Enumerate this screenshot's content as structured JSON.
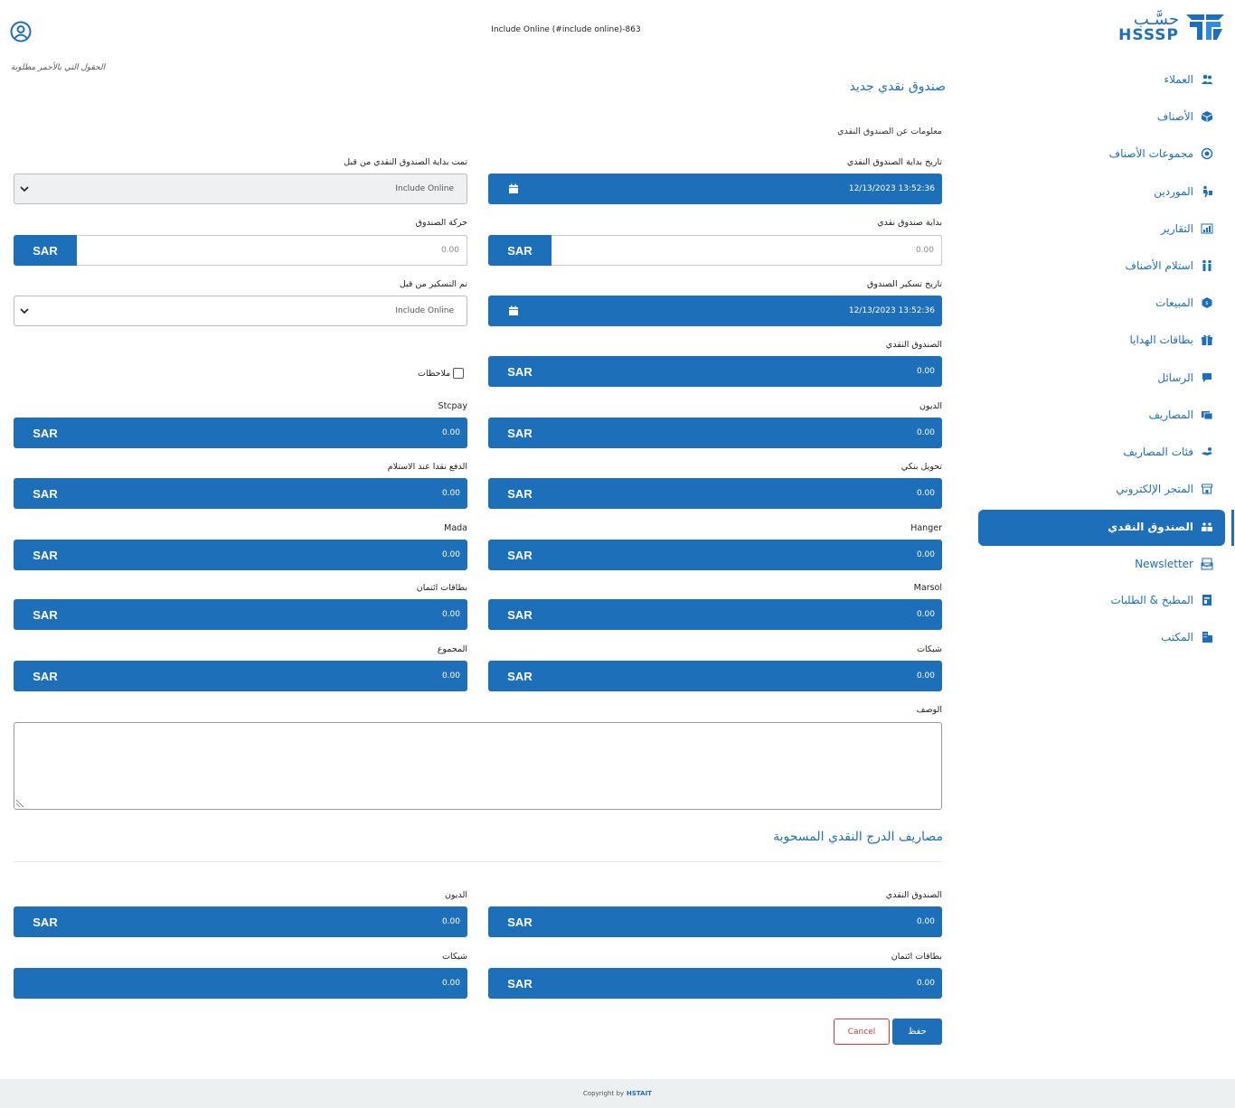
{
  "header": {
    "title": "Include Online (#include online)-863",
    "required_note": "الحقول التي بالأحمر مطلوبة"
  },
  "logo": {
    "arabic": "حسَّـب",
    "latin": "HSSSP"
  },
  "sidebar": {
    "items": [
      {
        "label": "العملاء",
        "icon": "users-icon"
      },
      {
        "label": "الأصناف",
        "icon": "box-icon"
      },
      {
        "label": "مجموعات الأصناف",
        "icon": "group-icon"
      },
      {
        "label": "الموردين",
        "icon": "supplier-icon"
      },
      {
        "label": "التقارير",
        "icon": "report-icon"
      },
      {
        "label": "استلام الأصناف",
        "icon": "receive-icon"
      },
      {
        "label": "المبيعات",
        "icon": "sales-icon"
      },
      {
        "label": "بطاقات الهدايا",
        "icon": "gift-icon"
      },
      {
        "label": "الرسائل",
        "icon": "message-icon"
      },
      {
        "label": "المصاريف",
        "icon": "expense-icon"
      },
      {
        "label": "فئات المصاريف",
        "icon": "expense-category-icon"
      },
      {
        "label": "المتجر الإلكتروني",
        "icon": "store-icon"
      },
      {
        "label": "الصندوق النقدي",
        "icon": "cash-register-icon",
        "active": true
      },
      {
        "label": "Newsletter",
        "icon": "newsletter-icon"
      },
      {
        "label": "المطبخ & الطلبات",
        "icon": "kitchen-icon"
      },
      {
        "label": "المكتب",
        "icon": "office-icon"
      }
    ]
  },
  "form": {
    "title": "صندوق نقدي جديد",
    "subtitle": "معلومات عن الصندوق النقدي",
    "currency": "SAR",
    "start_date_label": "تاريخ بداية الصندوق النقدي",
    "start_date_value": "12/13/2023 13:52:36",
    "started_by_label": "تمت بداية الصندوق النقدي من قبل",
    "started_by_value": "Include Online",
    "opening_label": "بداية صندوق نقدي",
    "opening_value": "0.00",
    "movement_label": "حركة الصندوق",
    "movement_value": "0.00",
    "close_date_label": "تاريخ تسكير الصندوق",
    "close_date_value": "12/13/2023 13:52:36",
    "closed_by_label": "تم التسكير من قبل",
    "closed_by_value": "Include Online",
    "cash_label": "الصندوق النقدي",
    "cash_value": "0.00",
    "notes_label": "ملاحظات",
    "debts_label": "الديون",
    "debts_value": "0.00",
    "stcpay_label": "Stcpay",
    "stcpay_value": "0.00",
    "bank_label": "تحويل بنكي",
    "bank_value": "0.00",
    "cod_label": "الدفع نقدا عند الاستلام",
    "cod_value": "0.00",
    "hanger_label": "Hanger",
    "hanger_value": "0.00",
    "mada_label": "Mada",
    "mada_value": "0.00",
    "marsol_label": "Marsol",
    "marsol_value": "0.00",
    "credit_label": "بطاقات ائتمان",
    "credit_value": "0.00",
    "checks_label": "شيكات",
    "checks_value": "0.00",
    "total_label": "المجموع",
    "total_value": "0.00",
    "description_label": "الوصف"
  },
  "withdrawn": {
    "title": "مصاريف الدرج النقدي المسحوبة",
    "cash_label": "الصندوق النقدي",
    "cash_value": "0.00",
    "debts_label": "الديون",
    "debts_value": "0.00",
    "credit_label": "بطاقات ائتمان",
    "credit_value": "0.00",
    "checks_label": "شيكات",
    "checks_value": "0.00"
  },
  "actions": {
    "save": "حفظ",
    "cancel": "Cancel"
  },
  "footer": {
    "text": "Copyright by",
    "brand": "HSTAIT"
  },
  "colors": {
    "accent": "#1e6fba",
    "danger": "#d9363e"
  }
}
